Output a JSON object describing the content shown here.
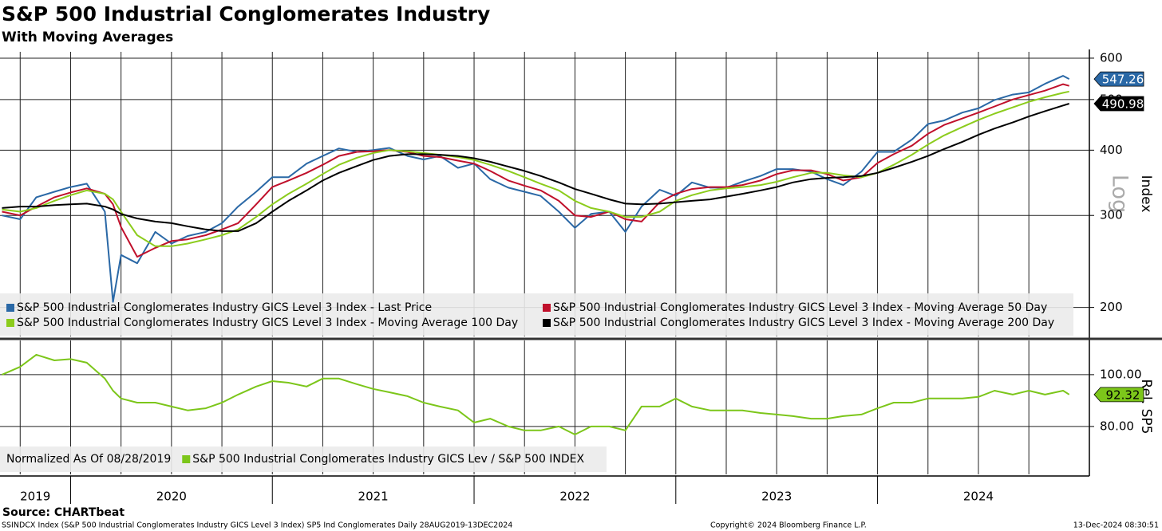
{
  "chart_data": [
    {
      "type": "line",
      "title": "S&P 500 Industrial Conglomerates Industry",
      "subtitle": "With Moving Averages",
      "y_axis_label": "Index",
      "scale_label": "Log",
      "log_scale": true,
      "grid": true,
      "xlim": [
        2019.65,
        2025.05
      ],
      "ylim": [
        176,
        617
      ],
      "yticks": [
        200,
        300,
        400,
        500,
        600
      ],
      "xgrid": [
        2019.75,
        2020,
        2020.25,
        2020.5,
        2020.75,
        2021,
        2021.25,
        2021.5,
        2021.75,
        2022,
        2022.25,
        2022.5,
        2022.75,
        2023,
        2023.25,
        2023.5,
        2023.75,
        2024,
        2024.25,
        2024.5,
        2024.75
      ],
      "x": [
        2019.66,
        2019.75,
        2019.83,
        2019.92,
        2020.0,
        2020.08,
        2020.17,
        2020.21,
        2020.25,
        2020.33,
        2020.42,
        2020.5,
        2020.58,
        2020.67,
        2020.75,
        2020.83,
        2020.92,
        2021.0,
        2021.08,
        2021.17,
        2021.25,
        2021.33,
        2021.42,
        2021.5,
        2021.58,
        2021.67,
        2021.75,
        2021.83,
        2021.92,
        2022.0,
        2022.08,
        2022.17,
        2022.25,
        2022.33,
        2022.42,
        2022.5,
        2022.58,
        2022.67,
        2022.75,
        2022.83,
        2022.92,
        2023.0,
        2023.08,
        2023.17,
        2023.25,
        2023.33,
        2023.42,
        2023.5,
        2023.58,
        2023.67,
        2023.75,
        2023.83,
        2023.92,
        2024.0,
        2024.08,
        2024.17,
        2024.25,
        2024.33,
        2024.42,
        2024.5,
        2024.58,
        2024.67,
        2024.75,
        2024.83,
        2024.92,
        2024.95
      ],
      "series": [
        {
          "name": "S&P 500 Industrial Conglomerates Industry GICS Level 3 Index - Last Price",
          "color": "#2a68a6",
          "last_value_tag": true,
          "values": [
            300,
            295,
            325,
            333,
            340,
            345,
            305,
            205,
            252,
            243,
            279,
            265,
            274,
            279,
            290,
            312,
            333,
            355,
            355,
            377,
            390,
            403,
            397,
            400,
            404,
            390,
            384,
            390,
            370,
            377,
            352,
            339,
            333,
            327,
            305,
            284,
            302,
            305,
            279,
            312,
            336,
            327,
            347,
            339,
            339,
            348,
            357,
            368,
            368,
            364,
            352,
            343,
            364,
            397,
            397,
            419,
            449,
            456,
            472,
            481,
            499,
            511,
            516,
            536,
            555,
            547.26
          ]
        },
        {
          "name": "S&P 500 Industrial Conglomerates Industry GICS Level 3 Index - Moving Average 50 Day",
          "color": "#c0102b",
          "last_value_tag": false,
          "values": [
            305,
            300,
            312,
            325,
            332,
            338,
            330,
            315,
            285,
            250,
            260,
            268,
            270,
            275,
            282,
            290,
            315,
            340,
            350,
            362,
            375,
            390,
            397,
            398,
            400,
            397,
            390,
            388,
            382,
            377,
            365,
            350,
            342,
            335,
            320,
            300,
            298,
            305,
            295,
            292,
            318,
            330,
            337,
            340,
            340,
            343,
            350,
            360,
            366,
            366,
            360,
            350,
            355,
            378,
            393,
            408,
            430,
            447,
            460,
            472,
            485,
            500,
            510,
            520,
            535,
            531
          ]
        },
        {
          "name": "S&P 500 Industrial Conglomerates Industry GICS Level 3 Index - Moving Average 100 Day",
          "color": "#8ccc1c",
          "last_value_tag": false,
          "values": [
            308,
            305,
            310,
            320,
            328,
            335,
            330,
            322,
            305,
            275,
            262,
            262,
            265,
            270,
            275,
            282,
            298,
            315,
            330,
            345,
            360,
            375,
            387,
            395,
            400,
            398,
            395,
            392,
            388,
            383,
            375,
            365,
            355,
            345,
            335,
            320,
            310,
            305,
            298,
            298,
            305,
            320,
            328,
            335,
            338,
            340,
            343,
            348,
            355,
            362,
            362,
            358,
            355,
            362,
            375,
            392,
            410,
            427,
            443,
            457,
            470,
            483,
            495,
            505,
            515,
            518
          ]
        },
        {
          "name": "S&P 500 Industrial Conglomerates Industry GICS Level 3 Index - Moving Average 200 Day",
          "color": "#000000",
          "last_value_tag": true,
          "values": [
            310,
            312,
            312,
            314,
            315,
            316,
            312,
            308,
            302,
            296,
            292,
            290,
            286,
            282,
            280,
            280,
            290,
            305,
            320,
            335,
            350,
            362,
            373,
            383,
            390,
            393,
            393,
            392,
            390,
            386,
            380,
            372,
            365,
            357,
            347,
            337,
            330,
            322,
            316,
            315,
            316,
            318,
            320,
            322,
            326,
            330,
            335,
            340,
            347,
            352,
            354,
            355,
            357,
            362,
            370,
            380,
            390,
            402,
            415,
            428,
            440,
            452,
            464,
            475,
            487,
            490.98
          ]
        }
      ]
    },
    {
      "type": "line",
      "y_axis_label": "Rel. SP5",
      "legend_note": "Normalized As Of 08/28/2019",
      "log_scale": false,
      "grid": true,
      "xlim": [
        2019.65,
        2025.05
      ],
      "ylim": [
        61.5,
        113.2
      ],
      "yticks": [
        {
          "value": 80,
          "label": "80.00"
        },
        {
          "value": 100,
          "label": "100.00"
        }
      ],
      "xticks": [
        2019,
        2020,
        2021,
        2022,
        2023,
        2024
      ],
      "xgrid": [
        2019.75,
        2020,
        2020.25,
        2020.5,
        2020.75,
        2021,
        2021.25,
        2021.5,
        2021.75,
        2022,
        2022.25,
        2022.5,
        2022.75,
        2023,
        2023.25,
        2023.5,
        2023.75,
        2024,
        2024.25,
        2024.5,
        2024.75
      ],
      "x": [
        2019.66,
        2019.75,
        2019.83,
        2019.92,
        2020.0,
        2020.08,
        2020.17,
        2020.21,
        2020.25,
        2020.33,
        2020.42,
        2020.5,
        2020.58,
        2020.67,
        2020.75,
        2020.83,
        2020.92,
        2021.0,
        2021.08,
        2021.17,
        2021.25,
        2021.33,
        2021.42,
        2021.5,
        2021.58,
        2021.67,
        2021.75,
        2021.83,
        2021.92,
        2022.0,
        2022.08,
        2022.17,
        2022.25,
        2022.33,
        2022.42,
        2022.5,
        2022.58,
        2022.67,
        2022.75,
        2022.83,
        2022.92,
        2023.0,
        2023.08,
        2023.17,
        2023.25,
        2023.33,
        2023.42,
        2023.5,
        2023.58,
        2023.67,
        2023.75,
        2023.83,
        2023.92,
        2024.0,
        2024.08,
        2024.17,
        2024.25,
        2024.33,
        2024.42,
        2024.5,
        2024.58,
        2024.67,
        2024.75,
        2024.83,
        2024.92,
        2024.95
      ],
      "series": [
        {
          "name": "S&P 500 Industrial Conglomerates Industry GICS Lev / S&P 500 INDEX",
          "color": "#7cc61a",
          "last_value_tag": true,
          "values": [
            100,
            103,
            107.7,
            105.5,
            106,
            104.6,
            98.5,
            93.8,
            90.8,
            89.2,
            89.2,
            87.7,
            86.2,
            87,
            89.2,
            92.3,
            95.4,
            97.5,
            96.9,
            95.4,
            98.5,
            98.5,
            96.3,
            94.5,
            93.2,
            91.7,
            89.2,
            87.7,
            86.2,
            81.5,
            83,
            80,
            78.5,
            78.5,
            80,
            76.9,
            80,
            80,
            78.5,
            87.7,
            87.7,
            90.8,
            87.7,
            86.2,
            86.2,
            86.2,
            85.2,
            84.6,
            84,
            83,
            83,
            84,
            84.6,
            87,
            89.2,
            89.2,
            90.8,
            90.8,
            90.8,
            91.4,
            93.8,
            92.3,
            93.8,
            92.3,
            93.8,
            92.32
          ]
        }
      ]
    }
  ],
  "footer": {
    "source": "Source: CHARTbeat",
    "description": "SSINDCX Index (S&P 500 Industrial Conglomerates Industry GICS Level 3 Index) SP5 Ind Conglomerates  Daily 28AUG2019-13DEC2024",
    "copyright": "Copyright© 2024 Bloomberg Finance L.P.",
    "timestamp": "13-Dec-2024 08:30:51"
  }
}
